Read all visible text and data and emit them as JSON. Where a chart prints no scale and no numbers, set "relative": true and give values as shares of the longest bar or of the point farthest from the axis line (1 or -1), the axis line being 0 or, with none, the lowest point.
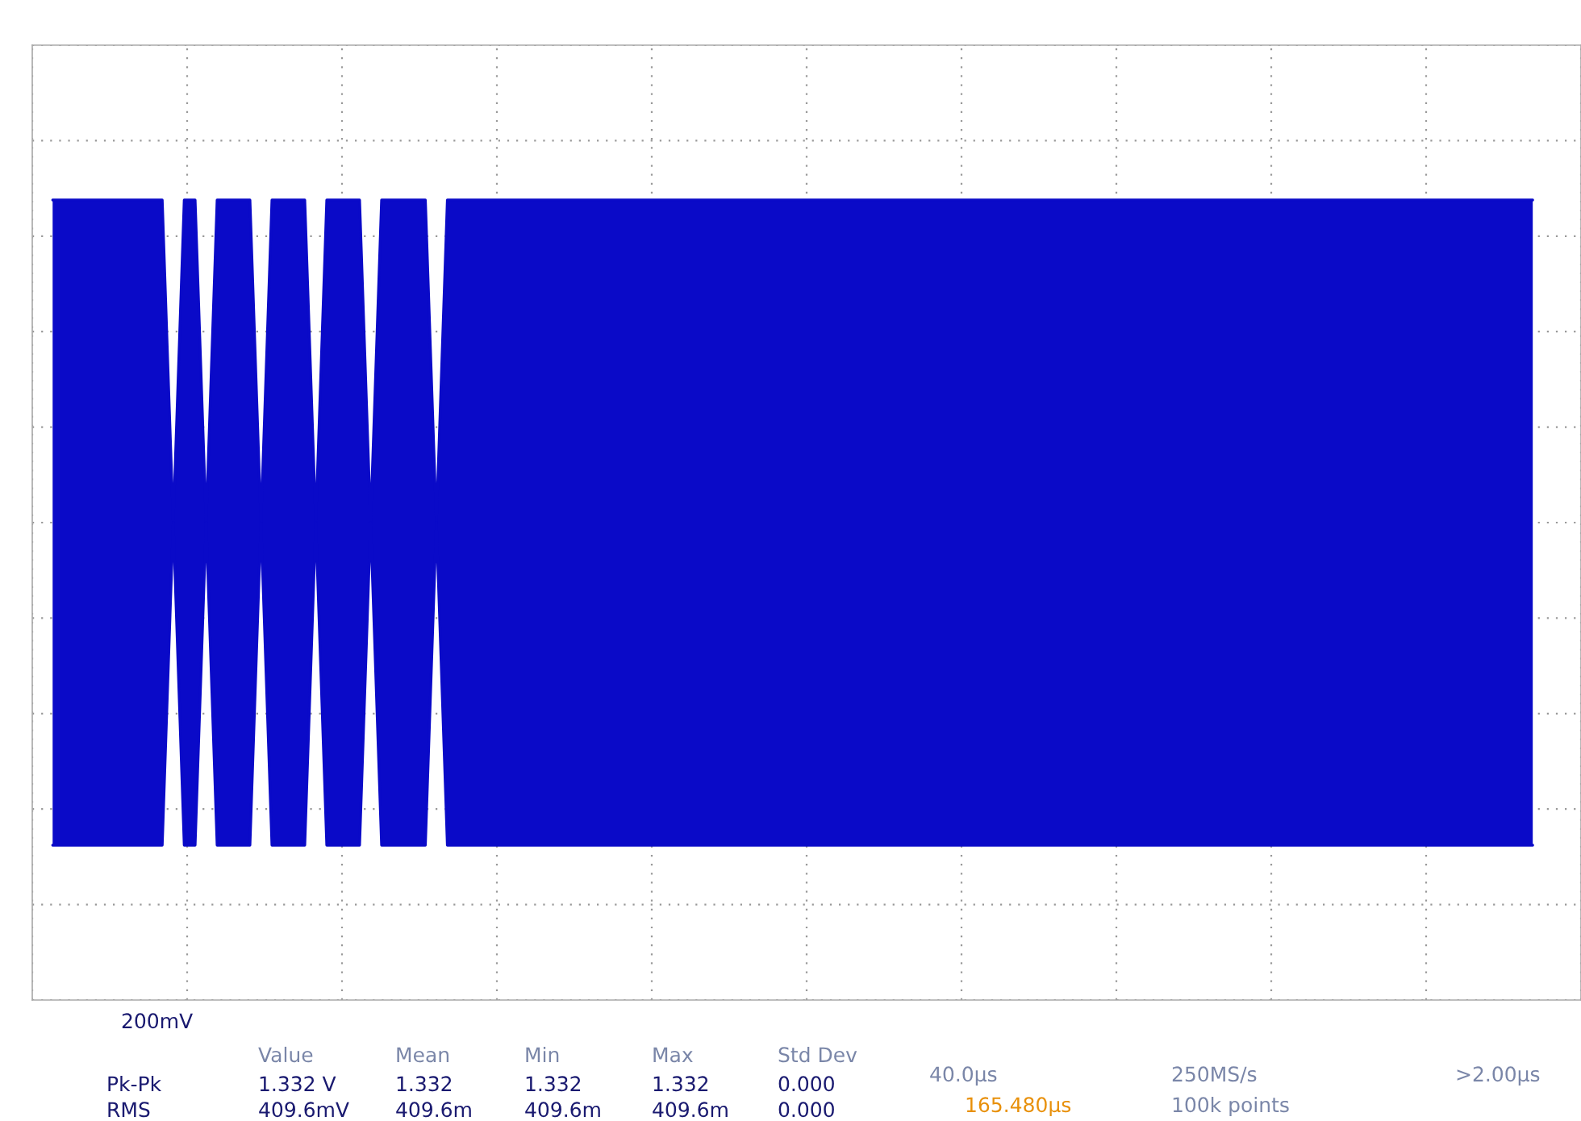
{
  "chart_data": {
    "type": "area",
    "relative": true,
    "grid": true,
    "tick_labels": false,
    "categories": [
      null,
      null,
      null,
      null,
      null,
      null,
      null,
      null,
      null,
      null,
      null,
      null,
      null,
      null,
      null,
      null,
      null,
      null,
      null,
      null,
      null,
      null,
      null,
      null,
      null,
      null,
      null,
      null,
      null,
      null,
      null,
      null,
      null,
      null,
      null,
      null,
      null,
      null,
      null,
      null,
      null,
      null,
      null,
      null,
      null,
      null,
      null,
      null,
      null,
      null,
      null,
      null,
      null,
      null,
      null,
      null,
      null,
      null,
      null,
      null,
      null,
      null,
      null,
      null,
      null,
      null,
      null,
      null,
      null,
      null,
      null,
      null,
      null,
      null,
      null,
      null,
      null,
      null,
      null,
      null,
      null,
      null,
      null,
      null,
      null,
      null,
      null,
      null,
      null,
      null,
      null,
      null,
      null,
      null,
      null,
      null,
      null,
      null,
      null,
      null,
      null,
      null,
      null,
      null,
      null,
      null,
      null,
      null,
      null,
      null,
      null,
      null,
      null,
      null,
      null,
      null,
      null,
      null,
      null,
      null,
      null,
      null,
      null,
      null,
      null,
      null,
      null,
      null,
      null,
      null,
      null,
      null,
      null,
      null,
      null,
      null
    ],
    "series": [
      {
        "color": "#0a0ac8",
        "values": [
          1,
          1,
          1,
          1,
          1,
          1,
          1,
          1,
          1,
          1,
          1,
          0,
          1,
          1,
          0,
          1,
          1,
          1,
          1,
          0,
          1,
          1,
          1,
          1,
          0,
          1,
          1,
          1,
          1,
          0,
          1,
          1,
          1,
          1,
          1,
          0,
          1,
          1,
          1,
          1,
          1,
          1,
          1,
          1,
          1,
          1,
          1,
          1,
          1,
          1,
          1,
          1,
          1,
          1,
          1,
          1,
          1,
          1,
          1,
          1,
          1,
          1,
          1,
          1,
          1,
          1,
          1,
          1,
          1,
          1,
          1,
          1,
          1,
          1,
          1,
          1,
          1,
          1,
          1,
          1,
          1,
          1,
          1,
          1,
          1,
          1,
          1,
          1,
          1,
          1,
          1,
          1,
          1,
          1,
          1,
          1,
          1,
          1,
          1,
          1,
          1,
          1,
          1,
          1,
          1,
          1,
          1,
          1,
          1,
          1,
          1,
          1,
          1,
          1,
          1,
          1,
          1,
          1,
          1,
          1,
          1,
          1,
          1,
          1,
          1,
          1,
          1,
          1,
          1,
          1,
          1,
          1,
          1,
          1,
          1,
          1
        ]
      },
      {
        "color": "#0a0ac8",
        "values": [
          -1,
          -1,
          -1,
          -1,
          -1,
          -1,
          -1,
          -1,
          -1,
          -1,
          -1,
          0,
          -1,
          -1,
          0,
          -1,
          -1,
          -1,
          -1,
          0,
          -1,
          -1,
          -1,
          -1,
          0,
          -1,
          -1,
          -1,
          -1,
          0,
          -1,
          -1,
          -1,
          -1,
          -1,
          0,
          -1,
          -1,
          -1,
          -1,
          -1,
          -1,
          -1,
          -1,
          -1,
          -1,
          -1,
          -1,
          -1,
          -1,
          -1,
          -1,
          -1,
          -1,
          -1,
          -1,
          -1,
          -1,
          -1,
          -1,
          -1,
          -1,
          -1,
          -1,
          -1,
          -1,
          -1,
          -1,
          -1,
          -1,
          -1,
          -1,
          -1,
          -1,
          -1,
          -1,
          -1,
          -1,
          -1,
          -1,
          -1,
          -1,
          -1,
          -1,
          -1,
          -1,
          -1,
          -1,
          -1,
          -1,
          -1,
          -1,
          -1,
          -1,
          -1,
          -1,
          -1,
          -1,
          -1,
          -1,
          -1,
          -1,
          -1,
          -1,
          -1,
          -1,
          -1,
          -1,
          -1,
          -1,
          -1,
          -1,
          -1,
          -1,
          -1,
          -1,
          -1,
          -1,
          -1,
          -1,
          -1,
          -1,
          -1,
          -1,
          -1,
          -1,
          -1,
          -1,
          -1,
          -1,
          -1,
          -1,
          -1,
          -1,
          -1,
          -1
        ]
      }
    ],
    "annotations": [
      "200mV",
      "Value",
      "Mean",
      "Min",
      "Max",
      "Std Dev",
      "Pk-Pk",
      "1.332 V",
      "1.332",
      "1.332",
      "1.332",
      "0.000",
      "RMS",
      "409.6mV",
      "409.6m",
      "409.6m",
      "409.6m",
      "0.000",
      "40.0µs",
      "165.480µs",
      "250MS/s",
      "100k points",
      ">2.00µs"
    ]
  }
}
